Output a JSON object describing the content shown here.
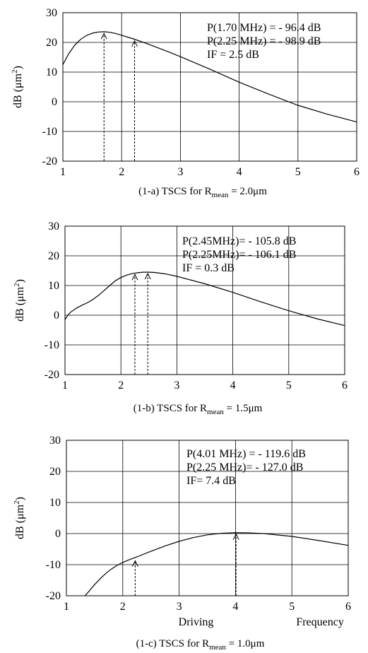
{
  "chart_data": [
    {
      "type": "line",
      "caption": {
        "pre": "(1-a) TSCS for R",
        "sub": "mean",
        "post": " = 2.0μm"
      },
      "ylabel": {
        "pre": "dB (μm",
        "sup": "2",
        "post": ")"
      },
      "xlim": [
        1,
        6
      ],
      "ylim": [
        -20,
        30
      ],
      "xticks": [
        "1",
        "2",
        "3",
        "4",
        "5",
        "6"
      ],
      "yticks": [
        "-20",
        "-10",
        "0",
        "10",
        "20",
        "30"
      ],
      "grid": true,
      "annotations": [
        "P(1.70 MHz) = - 96.4 dB",
        "P(2.25 MHz) = - 98.9 dB",
        "IF = 2.5 dB"
      ],
      "markers": [
        {
          "x": 1.7,
          "y": 23.5
        },
        {
          "x": 2.22,
          "y": 21.0
        }
      ],
      "x": [
        1.0,
        1.1,
        1.2,
        1.3,
        1.4,
        1.5,
        1.6,
        1.7,
        1.8,
        1.9,
        2.0,
        2.2,
        2.4,
        2.6,
        2.8,
        3.0,
        3.5,
        4.0,
        4.5,
        5.0,
        5.5,
        6.0
      ],
      "y": [
        12.5,
        16.2,
        19.0,
        21.0,
        22.3,
        23.1,
        23.5,
        23.6,
        23.4,
        23.0,
        22.4,
        21.2,
        19.8,
        18.3,
        16.8,
        15.2,
        11.0,
        6.6,
        2.6,
        -1.2,
        -4.2,
        -6.8
      ]
    },
    {
      "type": "line",
      "caption": {
        "pre": "(1-b) TSCS for R",
        "sub": "mean",
        "post": " = 1.5μm"
      },
      "ylabel": {
        "pre": "dB (μm",
        "sup": "2",
        "post": ")"
      },
      "xlim": [
        1,
        6
      ],
      "ylim": [
        -20,
        30
      ],
      "xticks": [
        "1",
        "2",
        "3",
        "4",
        "5",
        "6"
      ],
      "yticks": [
        "-20",
        "-10",
        "0",
        "10",
        "20",
        "30"
      ],
      "grid": true,
      "annotations": [
        "P(2.45MHz)= - 105.8 dB",
        "P(2.25MHz)= - 106.1 dB",
        "IF = 0.3 dB"
      ],
      "markers": [
        {
          "x": 2.25,
          "y": 14.2
        },
        {
          "x": 2.48,
          "y": 14.5
        }
      ],
      "x": [
        1.0,
        1.05,
        1.1,
        1.2,
        1.3,
        1.4,
        1.5,
        1.6,
        1.7,
        1.8,
        1.9,
        2.0,
        2.1,
        2.2,
        2.3,
        2.4,
        2.5,
        2.6,
        2.8,
        3.0,
        3.5,
        4.0,
        4.5,
        5.0,
        5.5,
        6.0
      ],
      "y": [
        -1.5,
        0.0,
        1.0,
        2.3,
        3.3,
        4.2,
        5.3,
        6.7,
        8.3,
        10.0,
        11.6,
        12.7,
        13.5,
        14.0,
        14.3,
        14.5,
        14.5,
        14.4,
        13.9,
        13.1,
        10.6,
        7.7,
        4.5,
        1.5,
        -1.2,
        -3.5
      ]
    },
    {
      "type": "line",
      "caption": {
        "pre": "(1-c) TSCS for R",
        "sub": "mean",
        "post": " = 1.0μm"
      },
      "ylabel": {
        "pre": "dB (μm",
        "sup": "2",
        "post": ")"
      },
      "xlim": [
        1,
        6
      ],
      "ylim": [
        -20,
        30
      ],
      "xticks": [
        "1",
        "2",
        "3",
        "4",
        "5",
        "6"
      ],
      "yticks": [
        "-20",
        "-10",
        "0",
        "10",
        "20",
        "30"
      ],
      "xlabel_words": [
        "Driving",
        "Frequency"
      ],
      "grid": true,
      "annotations": [
        "P(4.01 MHz) = - 119.6 dB",
        "P(2.25 MHz)= - 127.0 dB",
        "IF= 7.4 dB"
      ],
      "markers": [
        {
          "x": 2.22,
          "y": -8.3
        },
        {
          "x": 4.01,
          "y": 0.3
        }
      ],
      "x": [
        1.33,
        1.4,
        1.5,
        1.6,
        1.7,
        1.8,
        1.9,
        2.0,
        2.1,
        2.25,
        2.5,
        2.75,
        3.0,
        3.25,
        3.5,
        3.75,
        4.0,
        4.25,
        4.5,
        5.0,
        5.5,
        6.0
      ],
      "y": [
        -20.0,
        -18.6,
        -16.4,
        -14.5,
        -12.8,
        -11.4,
        -10.2,
        -9.3,
        -8.5,
        -7.5,
        -5.7,
        -4.0,
        -2.5,
        -1.3,
        -0.4,
        0.1,
        0.3,
        0.2,
        0.0,
        -0.9,
        -2.3,
        -3.8
      ]
    }
  ]
}
